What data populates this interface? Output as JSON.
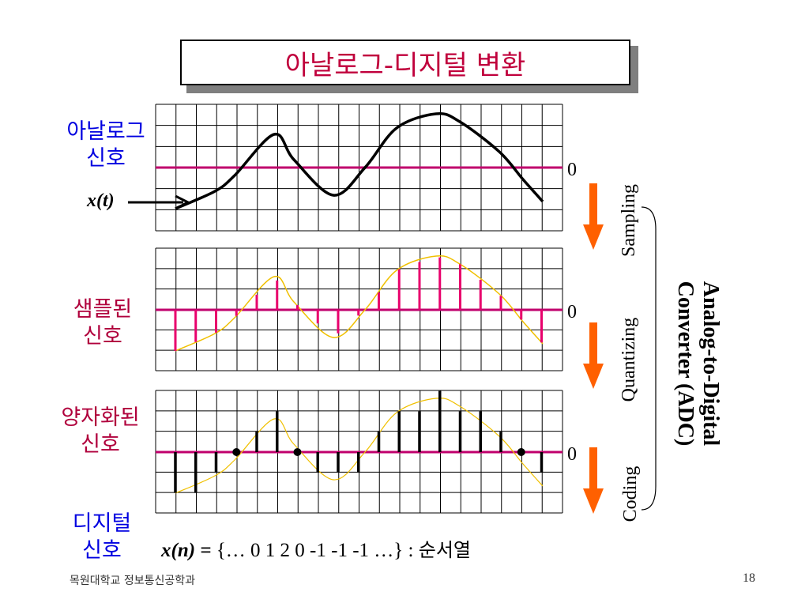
{
  "title": "아날로그-디지털 변환",
  "labels": {
    "analog": [
      "아날로그",
      "신호"
    ],
    "sampled": [
      "샘플된",
      "신호"
    ],
    "quantized": [
      "양자화된",
      "신호"
    ],
    "digital": [
      "디지털",
      "신호"
    ],
    "xt": "x(t)"
  },
  "zero_label": "0",
  "steps": [
    "Sampling",
    "Quantizing",
    "Coding"
  ],
  "adc": [
    "Analog-to-Digital",
    "Converter (ADC)"
  ],
  "sequence": {
    "lhs": "x(n) =",
    "body": "{… 0  1  2  0 -1 -1 -1 …} :",
    "suffix": "순서열"
  },
  "footer": {
    "university": "목원대학교 정보통신공학과",
    "page": "18"
  },
  "colors": {
    "title": "#c0003c",
    "axis": "#c0006c",
    "sample_line": "#e8006c",
    "curve_ref": "#f0c000",
    "arrow": "#ff6000",
    "label_blue": "#0000e0",
    "label_red": "#b0003c"
  },
  "quantized_levels": [
    -2,
    -2,
    -1,
    0,
    1,
    2,
    0,
    -1,
    -1,
    -1,
    1,
    2,
    2,
    3,
    2,
    2,
    1,
    0,
    -1
  ]
}
